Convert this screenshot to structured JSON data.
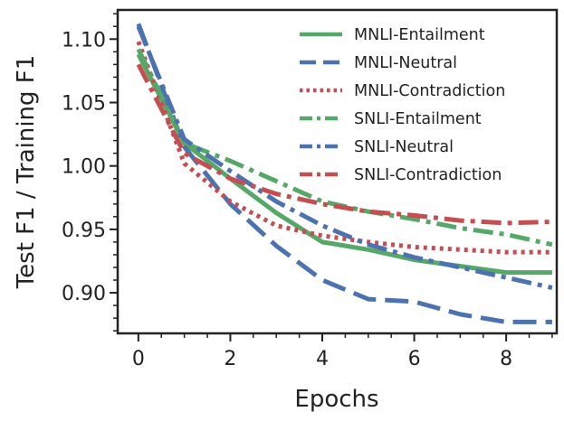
{
  "chart_data": {
    "type": "line",
    "title": "",
    "xlabel": "Epochs",
    "ylabel": "Test F1 / Training F1",
    "xlim": [
      -0.45,
      9.1
    ],
    "ylim": [
      0.868,
      1.123
    ],
    "x_ticks": [
      0,
      2,
      4,
      6,
      8
    ],
    "x_tick_labels": [
      "0",
      "2",
      "4",
      "6",
      "8"
    ],
    "y_ticks": [
      0.9,
      0.95,
      1.0,
      1.05,
      1.1
    ],
    "y_tick_labels": [
      "0.90",
      "0.95",
      "1.00",
      "1.05",
      "1.10"
    ],
    "grid": false,
    "legend_position": "top-right",
    "x": [
      0,
      1,
      2,
      3,
      4,
      5,
      6,
      7,
      8,
      9
    ],
    "series": [
      {
        "name": "MNLI-Entailment",
        "color": "#55a868",
        "style": "solid",
        "values": [
          1.088,
          1.018,
          0.99,
          0.963,
          0.94,
          0.934,
          0.926,
          0.921,
          0.916,
          0.916
        ]
      },
      {
        "name": "MNLI-Neutral",
        "color": "#4c72b0",
        "style": "dashed",
        "values": [
          1.112,
          1.015,
          0.97,
          0.937,
          0.91,
          0.895,
          0.893,
          0.883,
          0.877,
          0.877
        ]
      },
      {
        "name": "MNLI-Contradiction",
        "color": "#c44e52",
        "style": "dotted",
        "values": [
          1.098,
          1.002,
          0.972,
          0.953,
          0.945,
          0.94,
          0.936,
          0.934,
          0.932,
          0.932
        ]
      },
      {
        "name": "SNLI-Entailment",
        "color": "#55a868",
        "style": "dashdot",
        "values": [
          1.092,
          1.018,
          1.004,
          0.988,
          0.972,
          0.964,
          0.958,
          0.951,
          0.946,
          0.938
        ]
      },
      {
        "name": "SNLI-Neutral",
        "color": "#4c72b0",
        "style": "dashdot",
        "values": [
          1.11,
          1.021,
          0.996,
          0.972,
          0.953,
          0.938,
          0.928,
          0.92,
          0.912,
          0.904
        ]
      },
      {
        "name": "SNLI-Contradiction",
        "color": "#c44e52",
        "style": "dashdot",
        "values": [
          1.08,
          1.01,
          0.99,
          0.978,
          0.97,
          0.964,
          0.961,
          0.957,
          0.955,
          0.956
        ]
      }
    ]
  }
}
